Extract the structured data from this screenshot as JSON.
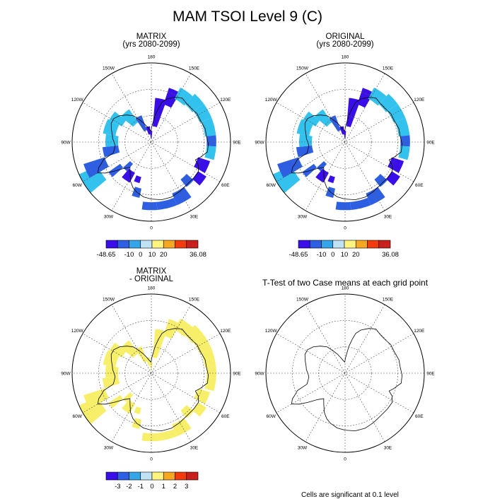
{
  "title": "MAM TSOI Level 9 (C)",
  "panels": {
    "top_left": {
      "title_line1": "MATRIX",
      "title_line2": "(yrs 2080-2099)"
    },
    "top_right": {
      "title_line1": "ORIGINAL",
      "title_line2": "(yrs 2080-2099)"
    },
    "bottom_left": {
      "title_line1": "MATRIX",
      "title_line2": "- ORIGINAL"
    },
    "bottom_right": {
      "title": "T-Test of two Case means at each grid point",
      "footnote": "Cells are significant at 0.1 level"
    }
  },
  "map_labels": {
    "lon_0": "0",
    "lon_30E": "30E",
    "lon_60E": "60E",
    "lon_90E": "90E",
    "lon_120E": "120E",
    "lon_150E": "150E",
    "lon_180": "180",
    "lon_150W": "150W",
    "lon_120W": "120W",
    "lon_90W": "90W",
    "lon_60W": "60W",
    "lon_30W": "30W"
  },
  "colorbar_top": {
    "colors": [
      "#3a0ee8",
      "#2e5fe3",
      "#33a6ea",
      "#bfe3f5",
      "#fff480",
      "#f5a623",
      "#f23c0e",
      "#c8201d"
    ],
    "labels": [
      "-48.65",
      "-10",
      "0",
      "10",
      "20",
      "36.08"
    ]
  },
  "colorbar_diff": {
    "colors": [
      "#3a0ee8",
      "#2e5fe3",
      "#33a6ea",
      "#bfe3f5",
      "#fff480",
      "#f5a623",
      "#f23c0e",
      "#c8201d"
    ],
    "labels": [
      "-3",
      "-2",
      "-1",
      "0",
      "1",
      "2",
      "3"
    ]
  },
  "fill_colors": {
    "cold": "#3a0ee8",
    "mid": "#2e5fe3",
    "light": "#33c2ee",
    "diff": "#f7ef6a"
  }
}
